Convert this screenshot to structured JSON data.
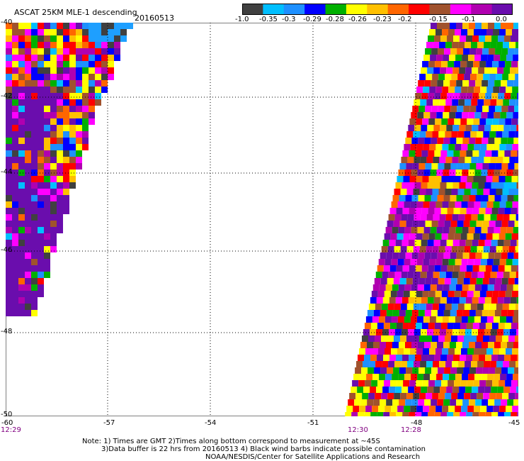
{
  "header": {
    "title": "ASCAT 25KM MLE-1 descending",
    "date": "20160513"
  },
  "legend": {
    "colors": [
      "#404040",
      "#00bfff",
      "#1e90ff",
      "#0000ff",
      "#00b000",
      "#ffff00",
      "#ffc000",
      "#ff6600",
      "#ff0000",
      "#a0522d",
      "#ff00ff",
      "#b000b0",
      "#6a0dad"
    ],
    "labels": [
      "-1.0",
      "-0.35",
      "-0.3",
      "-0.29",
      "-0.28",
      "-0.26",
      "-0.23",
      "-0.2",
      "-0.15",
      "-0.1",
      "0.0"
    ]
  },
  "axes": {
    "x_ticks": [
      "-60",
      "-57",
      "-54",
      "-51",
      "-48",
      "-45"
    ],
    "y_ticks": [
      "-40",
      "-42",
      "-44",
      "-46",
      "-48",
      "-50"
    ],
    "lon_range": [
      -60,
      -45
    ],
    "lat_range": [
      -50,
      -40
    ]
  },
  "times": [
    "12:29",
    "12:30",
    "12:28"
  ],
  "notes": [
    "Note: 1) Times are GMT 2)Times along bottom correspond to measurement at ~45S",
    "3)Data buffer is 22 hrs from 20160513 4) Black wind barbs indicate possible contamination",
    "NOAA/NESDIS/Center for Satellite Applications and Research"
  ]
}
